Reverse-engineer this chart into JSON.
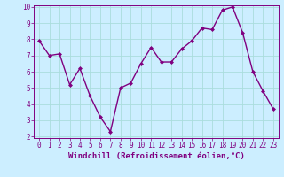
{
  "x": [
    0,
    1,
    2,
    3,
    4,
    5,
    6,
    7,
    8,
    9,
    10,
    11,
    12,
    13,
    14,
    15,
    16,
    17,
    18,
    19,
    20,
    21,
    22,
    23
  ],
  "y": [
    7.9,
    7.0,
    7.1,
    5.2,
    6.2,
    4.5,
    3.2,
    2.3,
    5.0,
    5.3,
    6.5,
    7.5,
    6.6,
    6.6,
    7.4,
    7.9,
    8.7,
    8.6,
    9.8,
    10.0,
    8.4,
    6.0,
    4.8,
    3.7
  ],
  "line_color": "#800080",
  "marker": "D",
  "marker_size": 2.0,
  "linewidth": 1.0,
  "bg_color": "#cceeff",
  "grid_color": "#aadddd",
  "xlabel": "Windchill (Refroidissement éolien,°C)",
  "xlabel_color": "#800080",
  "tick_color": "#800080",
  "ylim": [
    2,
    10
  ],
  "xlim": [
    -0.5,
    23.5
  ],
  "yticks": [
    2,
    3,
    4,
    5,
    6,
    7,
    8,
    9,
    10
  ],
  "xticks": [
    0,
    1,
    2,
    3,
    4,
    5,
    6,
    7,
    8,
    9,
    10,
    11,
    12,
    13,
    14,
    15,
    16,
    17,
    18,
    19,
    20,
    21,
    22,
    23
  ],
  "tick_fontsize": 5.5,
  "xlabel_fontsize": 6.5
}
